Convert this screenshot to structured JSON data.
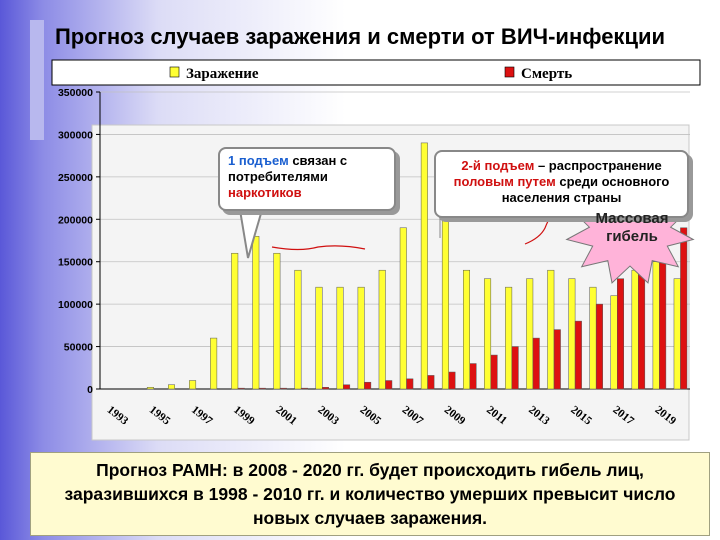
{
  "title": "Прогноз  случаев заражения и смерти от ВИЧ-инфекции",
  "chart_data": {
    "type": "bar",
    "categories": [
      "1993",
      "1994",
      "1995",
      "1996",
      "1997",
      "1998",
      "1999",
      "2000",
      "2001",
      "2002",
      "2003",
      "2004",
      "2005",
      "2006",
      "2007",
      "2008",
      "2009",
      "2010",
      "2011",
      "2012",
      "2013",
      "2014",
      "2015",
      "2016",
      "2017",
      "2018",
      "2019",
      "2020"
    ],
    "tick_labels": [
      "1993",
      "1995",
      "1997",
      "1999",
      "2001",
      "2003",
      "2005",
      "2007",
      "2009",
      "2011",
      "2013",
      "2015",
      "2017",
      "2019"
    ],
    "series": [
      {
        "name": "Заражение",
        "color": "#ffff33",
        "values": [
          0,
          0,
          2000,
          5000,
          10000,
          60000,
          160000,
          180000,
          160000,
          140000,
          120000,
          120000,
          120000,
          140000,
          190000,
          290000,
          200000,
          140000,
          130000,
          120000,
          130000,
          140000,
          130000,
          120000,
          110000,
          140000,
          150000,
          130000
        ]
      },
      {
        "name": "Смерть",
        "color": "#dd1111",
        "values": [
          0,
          0,
          0,
          0,
          0,
          0,
          1000,
          1000,
          1000,
          1000,
          2000,
          5000,
          8000,
          10000,
          12000,
          16000,
          20000,
          30000,
          40000,
          50000,
          60000,
          70000,
          80000,
          100000,
          130000,
          150000,
          170000,
          190000
        ]
      }
    ],
    "y_ticks": [
      "0",
      "50000",
      "100000",
      "150000",
      "200000",
      "250000",
      "300000",
      "350000"
    ],
    "ylim": [
      0,
      350000
    ],
    "legend_position": "top"
  },
  "callouts": {
    "first_a": "1 подъем",
    "first_b": " связан с потребителями",
    "first_c": "наркотиков",
    "second_a": "2-й подъем",
    "second_b": " – распространение",
    "second_c": "половым путем",
    "second_d": " среди основного населения страны",
    "star": "Массовая гибель"
  },
  "bottom_text": "Прогноз РАМН: в 2008 - 2020 гг. будет происходить гибель лиц, заразившихся в 1998 - 2010 гг. и количество умерших  превысит число новых случаев заражения."
}
